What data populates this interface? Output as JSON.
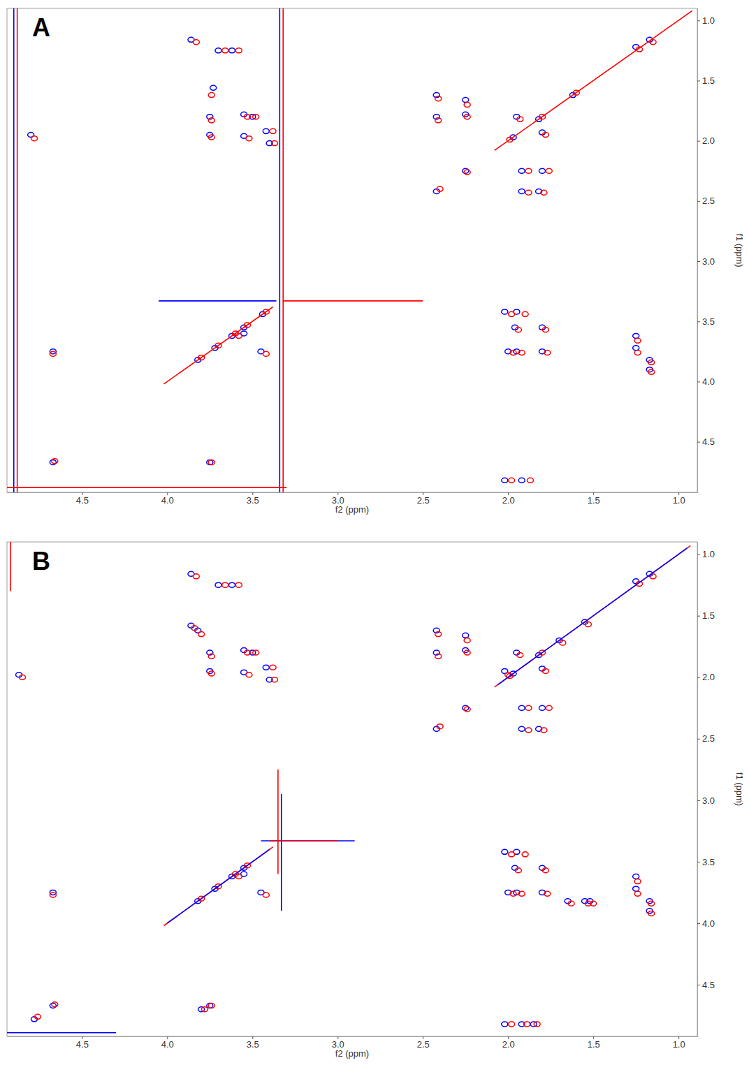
{
  "chart_data": [
    {
      "type": "scatter",
      "title": "A",
      "xlabel": "f2 (ppm)",
      "ylabel": "f1 (ppm)",
      "xlim": [
        4.94,
        0.89
      ],
      "ylim": [
        0.9,
        4.92
      ],
      "xticks": [
        4.5,
        {
          "value": 4,
          "label": "4.0"
        },
        3.5,
        {
          "value": 3,
          "label": "3.0"
        },
        2.5,
        {
          "value": 2,
          "label": "2.0"
        },
        1.5,
        {
          "value": 1,
          "label": "1.0"
        }
      ],
      "yticks": [
        {
          "value": 1,
          "label": "1.0"
        },
        1.5,
        {
          "value": 2,
          "label": "2.0"
        },
        2.5,
        {
          "value": 3,
          "label": "3.0"
        },
        3.5,
        {
          "value": 4,
          "label": "4.0"
        },
        4.5
      ],
      "series": [
        {
          "type": "scatter",
          "marker": "ellipse",
          "color": "#0000ff",
          "x": [
            3.86,
            3.7,
            3.62,
            3.73,
            3.75,
            3.55,
            3.5,
            3.42,
            3.75,
            3.55,
            3.4,
            2.42,
            2.42,
            2.25,
            2.25,
            2.42,
            2.25,
            1.97,
            1.82,
            1.95,
            1.8,
            1.25,
            1.17,
            1.92,
            1.8,
            1.92,
            1.82,
            2.02,
            1.95,
            1.96,
            1.8,
            2.0,
            1.95,
            1.8,
            1.25,
            1.25,
            1.17,
            1.17,
            2.02,
            1.92,
            3.82,
            3.72,
            3.62,
            3.55,
            3.55,
            3.45,
            4.67,
            3.75,
            4.67,
            4.8,
            3.44,
            1.62
          ],
          "values": [
            1.16,
            1.25,
            1.25,
            1.56,
            1.8,
            1.78,
            1.8,
            1.92,
            1.95,
            1.96,
            2.02,
            1.62,
            1.8,
            1.66,
            1.78,
            2.42,
            2.25,
            1.97,
            1.82,
            1.8,
            1.93,
            1.22,
            1.16,
            2.25,
            2.25,
            2.42,
            2.42,
            3.42,
            3.42,
            3.55,
            3.55,
            3.75,
            3.75,
            3.75,
            3.62,
            3.72,
            3.82,
            3.9,
            4.82,
            4.82,
            3.82,
            3.72,
            3.62,
            3.55,
            3.6,
            3.75,
            3.75,
            4.67,
            4.67,
            1.95,
            3.44,
            1.62
          ]
        },
        {
          "type": "scatter",
          "marker": "ellipse",
          "color": "#ff0000",
          "x": [
            3.83,
            3.66,
            3.58,
            3.74,
            3.74,
            3.53,
            3.48,
            3.38,
            3.74,
            3.52,
            3.37,
            2.41,
            2.41,
            2.24,
            2.24,
            2.4,
            2.24,
            1.99,
            1.8,
            1.93,
            1.78,
            1.23,
            1.15,
            1.88,
            1.76,
            1.88,
            1.79,
            1.98,
            1.9,
            1.94,
            1.78,
            1.97,
            1.92,
            1.77,
            1.24,
            1.24,
            1.16,
            1.16,
            1.98,
            1.87,
            3.8,
            3.7,
            3.6,
            3.53,
            3.58,
            3.42,
            4.67,
            3.74,
            4.66,
            4.78,
            3.42,
            1.6
          ],
          "values": [
            1.18,
            1.25,
            1.25,
            1.62,
            1.83,
            1.8,
            1.8,
            1.92,
            1.97,
            1.98,
            2.02,
            1.65,
            1.83,
            1.7,
            1.8,
            2.4,
            2.26,
            1.99,
            1.8,
            1.82,
            1.95,
            1.24,
            1.18,
            2.25,
            2.25,
            2.43,
            2.43,
            3.44,
            3.44,
            3.57,
            3.57,
            3.76,
            3.76,
            3.76,
            3.66,
            3.76,
            3.84,
            3.92,
            4.82,
            4.82,
            3.8,
            3.7,
            3.6,
            3.53,
            3.62,
            3.77,
            3.77,
            4.67,
            4.66,
            1.98,
            3.42,
            1.6
          ]
        },
        {
          "type": "line",
          "line_style": "solid",
          "color": "#ff0000",
          "x": [
            4.02,
            3.38,
            3.3,
            2.08,
            0.92
          ],
          "values": [
            4.02,
            3.38,
            null,
            2.08,
            0.92
          ]
        },
        {
          "type": "line",
          "line_style": "solid",
          "color": "#0000ff",
          "x": [
            3.34,
            3.34,
            3.3,
            4.05,
            3.36,
            3.3,
            4.9,
            4.9
          ],
          "values": [
            0.9,
            4.92,
            null,
            3.33,
            3.33,
            null,
            0.9,
            4.92
          ]
        },
        {
          "type": "line",
          "line_style": "solid",
          "color": "#ff0000",
          "x": [
            3.32,
            3.32,
            3.3,
            3.32,
            2.5,
            3.3,
            4.94,
            3.3,
            3.3,
            4.88,
            4.88
          ],
          "values": [
            0.9,
            4.92,
            null,
            3.33,
            3.33,
            null,
            4.88,
            4.88,
            null,
            0.9,
            4.92
          ]
        }
      ]
    },
    {
      "type": "scatter",
      "title": "B",
      "xlabel": "f2 (ppm)",
      "ylabel": "f1 (ppm)",
      "xlim": [
        4.94,
        0.89
      ],
      "ylim": [
        0.9,
        4.92
      ],
      "xticks": [
        4.5,
        {
          "value": 4,
          "label": "4.0"
        },
        3.5,
        {
          "value": 3,
          "label": "3.0"
        },
        2.5,
        {
          "value": 2,
          "label": "2.0"
        },
        1.5,
        {
          "value": 1,
          "label": "1.0"
        }
      ],
      "yticks": [
        {
          "value": 1,
          "label": "1.0"
        },
        1.5,
        {
          "value": 2,
          "label": "2.0"
        },
        2.5,
        {
          "value": 3,
          "label": "3.0"
        },
        3.5,
        {
          "value": 4,
          "label": "4.0"
        },
        4.5
      ],
      "series": [
        {
          "type": "scatter",
          "marker": "ellipse",
          "color": "#0000ff",
          "x": [
            3.86,
            3.7,
            3.62,
            3.86,
            3.82,
            3.75,
            3.55,
            3.5,
            3.42,
            3.75,
            3.55,
            3.4,
            2.42,
            2.42,
            2.25,
            2.25,
            2.42,
            2.25,
            1.97,
            1.82,
            1.95,
            1.8,
            2.02,
            1.7,
            1.55,
            1.25,
            1.17,
            1.92,
            1.8,
            1.92,
            1.82,
            2.02,
            1.95,
            1.96,
            1.8,
            2.0,
            1.95,
            1.8,
            1.65,
            1.55,
            1.52,
            1.25,
            1.25,
            1.17,
            1.17,
            2.02,
            1.92,
            1.85,
            3.82,
            3.72,
            3.62,
            3.55,
            3.55,
            3.45,
            4.67,
            3.75,
            4.67,
            4.87,
            3.8,
            4.78
          ],
          "values": [
            1.16,
            1.25,
            1.25,
            1.58,
            1.62,
            1.8,
            1.78,
            1.8,
            1.92,
            1.95,
            1.96,
            2.02,
            1.62,
            1.8,
            1.66,
            1.78,
            2.42,
            2.25,
            1.97,
            1.82,
            1.8,
            1.93,
            1.95,
            1.7,
            1.55,
            1.22,
            1.16,
            2.25,
            2.25,
            2.42,
            2.42,
            3.42,
            3.42,
            3.55,
            3.55,
            3.75,
            3.75,
            3.75,
            3.82,
            3.82,
            3.82,
            3.62,
            3.72,
            3.82,
            3.9,
            4.82,
            4.82,
            4.82,
            3.82,
            3.72,
            3.62,
            3.55,
            3.6,
            3.75,
            3.75,
            4.67,
            4.67,
            1.98,
            4.7,
            4.78
          ]
        },
        {
          "type": "scatter",
          "marker": "ellipse",
          "color": "#ff0000",
          "x": [
            3.83,
            3.66,
            3.58,
            3.84,
            3.8,
            3.74,
            3.53,
            3.48,
            3.38,
            3.74,
            3.52,
            3.37,
            2.41,
            2.41,
            2.24,
            2.24,
            2.4,
            2.24,
            1.99,
            1.8,
            1.93,
            1.78,
            2.0,
            1.68,
            1.53,
            1.23,
            1.15,
            1.88,
            1.76,
            1.88,
            1.79,
            1.98,
            1.9,
            1.94,
            1.78,
            1.97,
            1.92,
            1.77,
            1.63,
            1.53,
            1.5,
            1.24,
            1.24,
            1.16,
            1.16,
            1.98,
            1.89,
            1.83,
            3.8,
            3.7,
            3.6,
            3.53,
            3.58,
            3.42,
            4.67,
            3.74,
            4.66,
            4.85,
            3.78,
            4.76
          ],
          "values": [
            1.18,
            1.25,
            1.25,
            1.6,
            1.65,
            1.83,
            1.8,
            1.8,
            1.92,
            1.97,
            1.98,
            2.02,
            1.65,
            1.83,
            1.7,
            1.8,
            2.4,
            2.26,
            1.99,
            1.8,
            1.82,
            1.95,
            1.98,
            1.72,
            1.57,
            1.24,
            1.18,
            2.25,
            2.25,
            2.43,
            2.43,
            3.44,
            3.44,
            3.57,
            3.57,
            3.76,
            3.76,
            3.76,
            3.84,
            3.84,
            3.84,
            3.66,
            3.76,
            3.84,
            3.92,
            4.82,
            4.82,
            4.82,
            3.8,
            3.7,
            3.6,
            3.53,
            3.62,
            3.77,
            3.77,
            4.67,
            4.66,
            2.0,
            4.7,
            4.76
          ]
        },
        {
          "type": "line",
          "line_style": "solid",
          "color": "#ff0000",
          "x": [
            4.02,
            3.38,
            3.3,
            2.08,
            0.93
          ],
          "values": [
            4.02,
            3.38,
            null,
            2.08,
            0.93
          ]
        },
        {
          "type": "line",
          "line_style": "solid",
          "color": "#0000ff",
          "x": [
            4.0,
            3.4,
            3.3,
            2.06,
            0.95
          ],
          "values": [
            4.0,
            3.4,
            null,
            2.06,
            0.95
          ]
        },
        {
          "type": "line",
          "line_style": "solid",
          "color": "#0000ff",
          "x": [
            3.33,
            3.33,
            3.3,
            3.45,
            2.9,
            3.3,
            4.94,
            4.3
          ],
          "values": [
            2.95,
            3.9,
            null,
            3.33,
            3.33,
            null,
            4.89,
            4.89
          ]
        },
        {
          "type": "line",
          "line_style": "solid",
          "color": "#ff0000",
          "x": [
            3.35,
            3.35,
            3.3,
            3.4,
            3.0,
            3.3,
            4.92,
            4.92
          ],
          "values": [
            2.75,
            3.6,
            null,
            3.33,
            3.33,
            null,
            0.9,
            1.3
          ]
        }
      ]
    }
  ]
}
